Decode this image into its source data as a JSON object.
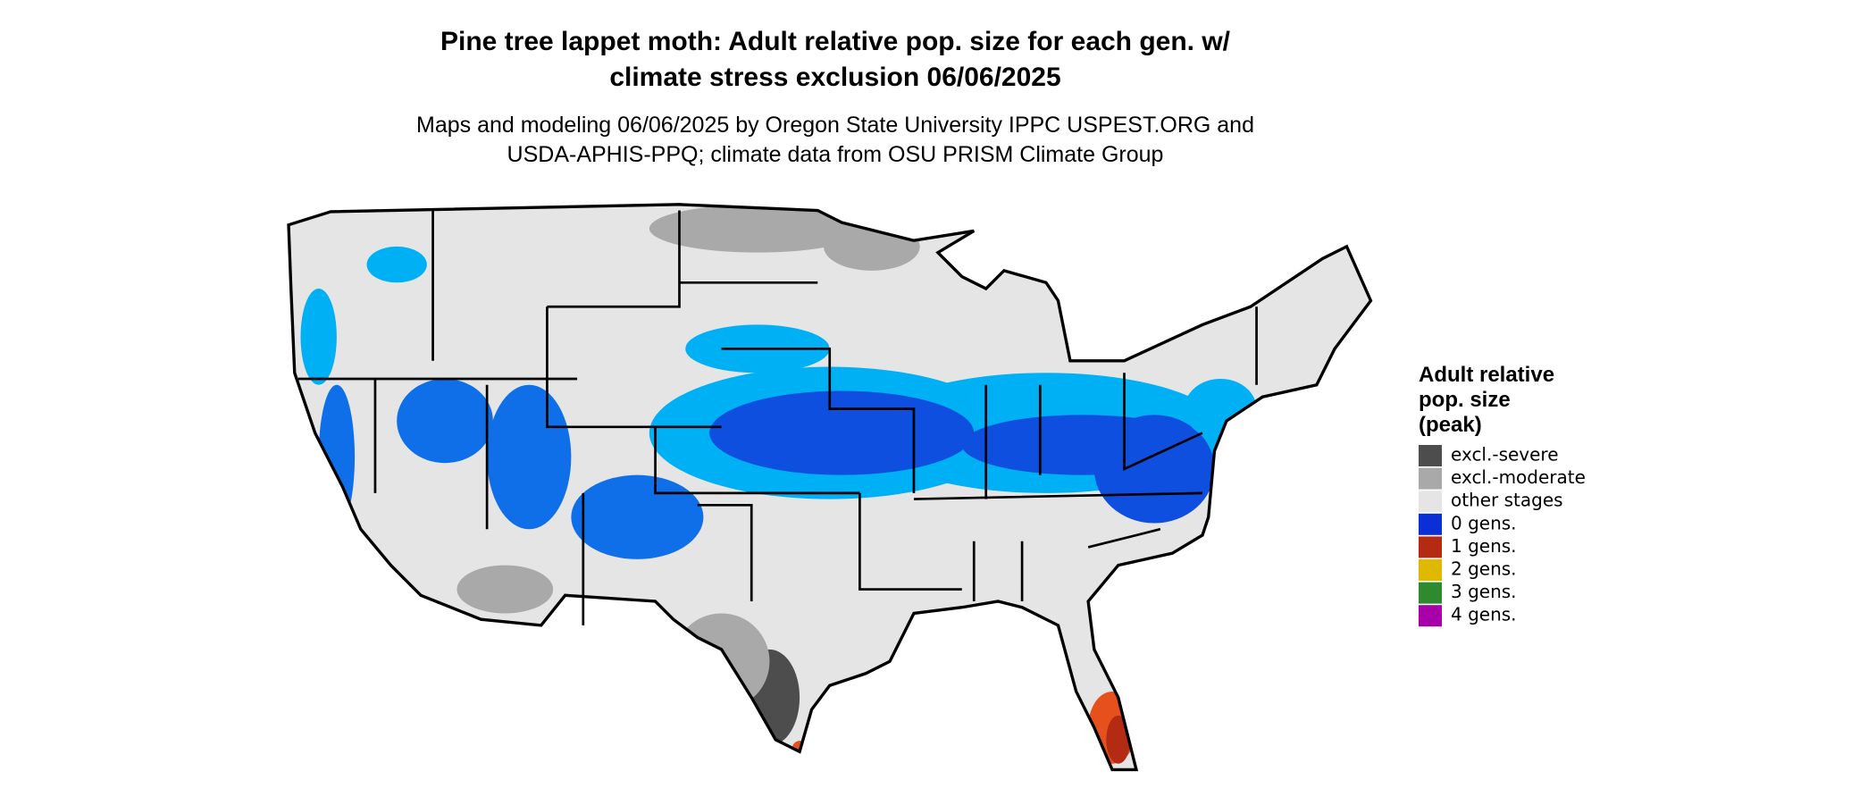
{
  "header": {
    "title": [
      "Pine tree lappet moth: Adult relative pop. size for each gen. w/",
      "climate stress exclusion 06/06/2025"
    ],
    "subtitle": [
      "Maps and modeling 06/06/2025 by Oregon State University IPPC USPEST.ORG and",
      "USDA-APHIS-PPQ; climate data from OSU PRISM Climate Group"
    ]
  },
  "legend": {
    "title": [
      "Adult relative",
      "pop. size",
      "(peak)"
    ],
    "items": [
      {
        "label": "excl.-severe",
        "color": "#4d4d4d"
      },
      {
        "label": "excl.-moderate",
        "color": "#a9a9a9"
      },
      {
        "label": "other stages",
        "color": "#e5e5e5"
      },
      {
        "label": "0 gens.",
        "color": "#0a2fd6"
      },
      {
        "label": "1 gens.",
        "color": "#b32b13"
      },
      {
        "label": "2 gens.",
        "color": "#e0b800"
      },
      {
        "label": "3 gens.",
        "color": "#2f8a2f"
      },
      {
        "label": "4 gens.",
        "color": "#a800a8"
      }
    ]
  }
}
